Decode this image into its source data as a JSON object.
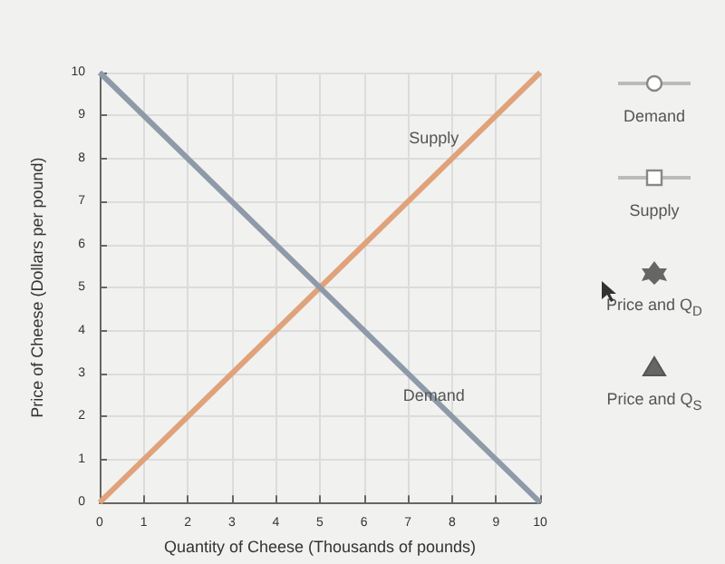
{
  "chart_data": {
    "type": "line",
    "xlabel": "Quantity of Cheese (Thousands of pounds)",
    "ylabel": "Price of Cheese (Dollars per pound)",
    "xlim": [
      0,
      10
    ],
    "ylim": [
      0,
      10
    ],
    "xticks": [
      0,
      1,
      2,
      3,
      4,
      5,
      6,
      7,
      8,
      9,
      10
    ],
    "yticks": [
      0,
      1,
      2,
      3,
      4,
      5,
      6,
      7,
      8,
      9,
      10
    ],
    "grid": true,
    "marker": "none",
    "series": [
      {
        "name": "Supply",
        "color": "#e0a27a",
        "x": [
          0,
          8,
          10
        ],
        "values": [
          0,
          8,
          10
        ]
      },
      {
        "name": "Demand",
        "color": "#8e9aa8",
        "x": [
          0,
          8,
          10
        ],
        "values": [
          10,
          2,
          0
        ]
      }
    ],
    "annotations": [
      "Demand",
      "Supply",
      "Price and Q$_{D}$",
      "Price and Q$_{S}$"
    ]
  }
}
